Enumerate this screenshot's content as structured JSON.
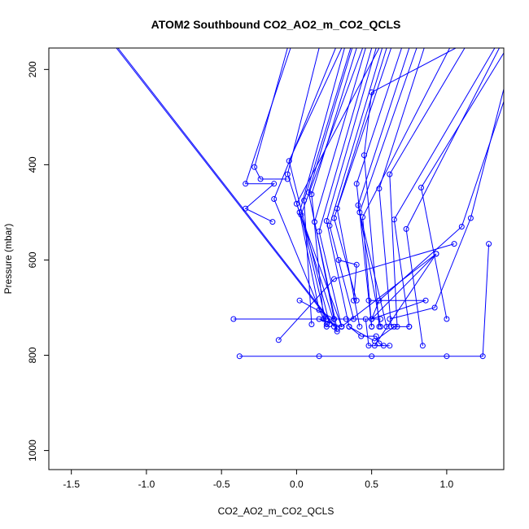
{
  "chart_data": {
    "type": "line",
    "title": "ATOM2 Southbound CO2_AO2_m_CO2_QCLS",
    "xlabel": "CO2_AO2_m_CO2_QCLS",
    "ylabel": "Pressure (mbar)",
    "xlim": [
      -1.65,
      1.38
    ],
    "ylim": [
      1040,
      155
    ],
    "y_reversed": true,
    "x_ticks": [
      -1.5,
      -1.0,
      -0.5,
      0.0,
      0.5,
      1.0
    ],
    "x_tick_labels": [
      "-1.5",
      "-1.0",
      "-0.5",
      "0.0",
      "0.5",
      "1.0"
    ],
    "y_ticks": [
      200,
      400,
      600,
      800,
      1000
    ],
    "y_tick_labels": [
      "200",
      "400",
      "600",
      "800",
      "1000"
    ],
    "grid": false,
    "color": "#0000ff",
    "series": [
      {
        "points": [
          [
            -1.2,
            155
          ],
          [
            0.25,
            740
          ]
        ]
      },
      {
        "points": [
          [
            -1.19,
            155
          ],
          [
            0.27,
            745
          ]
        ]
      },
      {
        "points": [
          [
            -0.42,
            724
          ],
          [
            0.25,
            724
          ],
          [
            0.56,
            724
          ]
        ]
      },
      {
        "points": [
          [
            -0.38,
            802
          ],
          [
            0.15,
            802
          ],
          [
            0.5,
            802
          ],
          [
            1.0,
            802
          ],
          [
            1.24,
            802
          ],
          [
            1.28,
            566
          ]
        ]
      },
      {
        "points": [
          [
            -0.12,
            768
          ],
          [
            0.25,
            640
          ],
          [
            1.05,
            566
          ]
        ]
      },
      {
        "points": [
          [
            -0.06,
            155
          ],
          [
            -0.28,
            405
          ],
          [
            -0.24,
            430
          ],
          [
            -0.06,
            430
          ]
        ]
      },
      {
        "points": [
          [
            -0.04,
            155
          ],
          [
            -0.34,
            440
          ],
          [
            -0.15,
            440
          ],
          [
            -0.34,
            492
          ],
          [
            -0.16,
            520
          ]
        ]
      },
      {
        "points": [
          [
            0.26,
            155
          ],
          [
            -0.15,
            472
          ],
          [
            0.2,
            740
          ]
        ]
      },
      {
        "points": [
          [
            0.3,
            155
          ],
          [
            -0.05,
            392
          ],
          [
            0.22,
            735
          ]
        ]
      },
      {
        "points": [
          [
            0.15,
            155
          ],
          [
            -0.06,
            420
          ],
          [
            0.27,
            750
          ]
        ]
      },
      {
        "points": [
          [
            0.55,
            155
          ],
          [
            0.0,
            482
          ],
          [
            0.3,
            740
          ]
        ]
      },
      {
        "points": [
          [
            0.32,
            155
          ],
          [
            0.02,
            500
          ],
          [
            0.15,
            705
          ]
        ]
      },
      {
        "points": [
          [
            0.36,
            155
          ],
          [
            0.05,
            475
          ],
          [
            0.1,
            735
          ]
        ]
      },
      {
        "points": [
          [
            0.37,
            155
          ],
          [
            0.08,
            458
          ],
          [
            0.25,
            724
          ]
        ]
      },
      {
        "points": [
          [
            0.4,
            155
          ],
          [
            0.1,
            462
          ],
          [
            0.18,
            724
          ]
        ]
      },
      {
        "points": [
          [
            0.44,
            155
          ],
          [
            0.03,
            505
          ],
          [
            0.2,
            735
          ]
        ]
      },
      {
        "points": [
          [
            0.46,
            155
          ],
          [
            0.12,
            520
          ],
          [
            0.27,
            745
          ]
        ]
      },
      {
        "points": [
          [
            0.5,
            155
          ],
          [
            0.15,
            540
          ],
          [
            0.3,
            740
          ]
        ]
      },
      {
        "points": [
          [
            0.53,
            155
          ],
          [
            0.2,
            518
          ],
          [
            0.35,
            740
          ]
        ]
      },
      {
        "points": [
          [
            0.57,
            155
          ],
          [
            0.22,
            528
          ],
          [
            0.38,
            724
          ]
        ]
      },
      {
        "points": [
          [
            0.6,
            155
          ],
          [
            0.27,
            492
          ],
          [
            0.42,
            740
          ]
        ]
      },
      {
        "points": [
          [
            0.63,
            155
          ],
          [
            0.25,
            512
          ],
          [
            0.4,
            685
          ]
        ]
      },
      {
        "points": [
          [
            0.7,
            155
          ],
          [
            0.4,
            440
          ],
          [
            0.5,
            740
          ]
        ]
      },
      {
        "points": [
          [
            0.75,
            155
          ],
          [
            0.41,
            485
          ],
          [
            0.56,
            740
          ]
        ]
      },
      {
        "points": [
          [
            0.8,
            155
          ],
          [
            0.42,
            500
          ],
          [
            0.6,
            740
          ]
        ]
      },
      {
        "points": [
          [
            0.85,
            155
          ],
          [
            0.55,
            450
          ],
          [
            0.63,
            740
          ]
        ]
      },
      {
        "points": [
          [
            1.02,
            155
          ],
          [
            0.44,
            510
          ],
          [
            0.5,
            740
          ]
        ]
      },
      {
        "points": [
          [
            1.06,
            155
          ],
          [
            0.5,
            248
          ],
          [
            0.45,
            380
          ],
          [
            0.55,
            740
          ]
        ]
      },
      {
        "points": [
          [
            1.12,
            155
          ],
          [
            0.62,
            420
          ],
          [
            0.67,
            740
          ]
        ]
      },
      {
        "points": [
          [
            1.32,
            155
          ],
          [
            0.65,
            515
          ],
          [
            0.75,
            740
          ]
        ]
      },
      {
        "points": [
          [
            1.35,
            155
          ],
          [
            0.73,
            535
          ],
          [
            0.84,
            780
          ]
        ]
      },
      {
        "points": [
          [
            1.4,
            155
          ],
          [
            0.83,
            448
          ],
          [
            1.0,
            724
          ]
        ]
      },
      {
        "points": [
          [
            1.45,
            155
          ],
          [
            1.16,
            512
          ],
          [
            0.92,
            700
          ],
          [
            0.62,
            724
          ]
        ]
      },
      {
        "points": [
          [
            1.5,
            155
          ],
          [
            1.1,
            530
          ],
          [
            0.55,
            685
          ],
          [
            0.5,
            724
          ]
        ]
      },
      {
        "points": [
          [
            0.48,
            685
          ],
          [
            0.86,
            685
          ],
          [
            0.5,
            724
          ],
          [
            0.93,
            587
          ],
          [
            0.52,
            780
          ]
        ]
      },
      {
        "points": [
          [
            0.93,
            587
          ],
          [
            0.3,
            740
          ],
          [
            0.15,
            724
          ],
          [
            0.2,
            724
          ]
        ]
      },
      {
        "points": [
          [
            0.46,
            724
          ],
          [
            0.48,
            780
          ],
          [
            0.62,
            780
          ]
        ]
      },
      {
        "points": [
          [
            0.35,
            740
          ],
          [
            0.43,
            760
          ],
          [
            0.53,
            760
          ],
          [
            0.55,
            775
          ],
          [
            0.58,
            780
          ]
        ]
      },
      {
        "points": [
          [
            0.35,
            740
          ],
          [
            0.52,
            770
          ],
          [
            0.65,
            740
          ],
          [
            0.75,
            740
          ]
        ]
      },
      {
        "points": [
          [
            0.28,
            600
          ],
          [
            0.4,
            610
          ],
          [
            0.38,
            685
          ]
        ]
      },
      {
        "points": [
          [
            0.02,
            685
          ],
          [
            0.25,
            724
          ],
          [
            0.33,
            724
          ]
        ]
      }
    ]
  }
}
